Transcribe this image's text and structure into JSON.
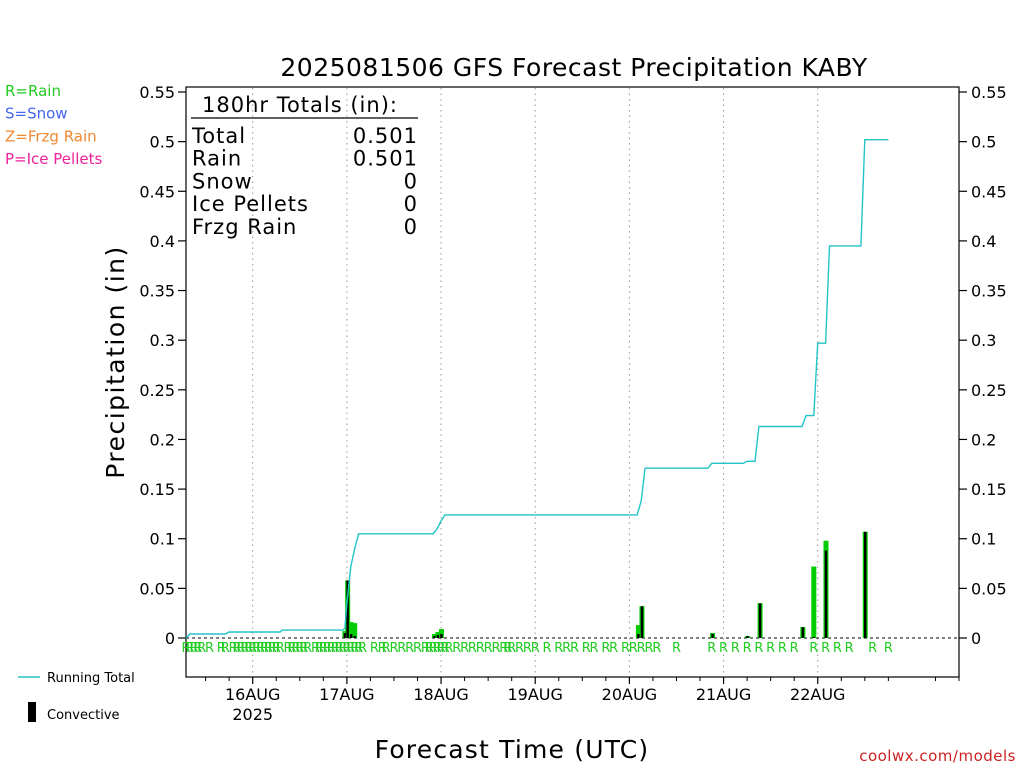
{
  "legend_top": [
    {
      "text": "R=Rain",
      "color": "#22cc22"
    },
    {
      "text": "S=Snow",
      "color": "#4466ee"
    },
    {
      "text": "Z=Frzg Rain",
      "color": "#ee8833"
    },
    {
      "text": "P=Ice Pellets",
      "color": "#ee2299"
    }
  ],
  "legend_bottom": {
    "running_total": "Running Total",
    "convective": "Convective"
  },
  "totals": {
    "header": "180hr Totals (in):",
    "rows": [
      {
        "label": "Total",
        "value": "0.501"
      },
      {
        "label": "Rain",
        "value": "0.501"
      },
      {
        "label": "Snow",
        "value": "0"
      },
      {
        "label": "Ice Pellets",
        "value": "0"
      },
      {
        "label": "Frzg Rain",
        "value": "0"
      }
    ]
  },
  "credit": "coolwx.com/models",
  "colors": {
    "running_total": "#22c4c8",
    "rain_bar": "#00cc00",
    "convective": "#000000",
    "ptype_text": "#22cc22",
    "credit": "#cc2222"
  },
  "chart_data": {
    "type": "bar",
    "title": "2025081506 GFS Forecast Precipitation KABY",
    "xlabel": "Forecast Time (UTC)",
    "ylabel": "Precipitation (in)",
    "ylim": [
      0,
      0.55
    ],
    "xlim_hours_from_16AUG00Z": [
      -17,
      180
    ],
    "y_ticks": [
      0,
      0.05,
      0.1,
      0.15,
      0.2,
      0.25,
      0.3,
      0.35,
      0.4,
      0.45,
      0.5,
      0.55
    ],
    "y_tick_labels": [
      "0",
      "0.05",
      "0.1",
      "0.15",
      "0.2",
      "0.25",
      "0.3",
      "0.35",
      "0.4",
      "0.45",
      "0.5",
      "0.55"
    ],
    "x_ticks": [
      {
        "label": "16AUG",
        "sub": "2025",
        "t": 0
      },
      {
        "label": "17AUG",
        "sub": "",
        "t": 24
      },
      {
        "label": "18AUG",
        "sub": "",
        "t": 48
      },
      {
        "label": "19AUG",
        "sub": "",
        "t": 72
      },
      {
        "label": "20AUG",
        "sub": "",
        "t": 96
      },
      {
        "label": "21AUG",
        "sub": "",
        "t": 120
      },
      {
        "label": "22AUG",
        "sub": "",
        "t": 144
      }
    ],
    "grid": "vertical dotted at day boundaries",
    "series": [
      {
        "name": "Running Total",
        "kind": "line",
        "points": [
          [
            -17,
            0.0
          ],
          [
            -16,
            0.004
          ],
          [
            -7,
            0.004
          ],
          [
            -6,
            0.006
          ],
          [
            -1,
            0.006
          ],
          [
            0,
            0.006
          ],
          [
            7,
            0.006
          ],
          [
            7.5,
            0.008
          ],
          [
            23,
            0.008
          ],
          [
            23.5,
            0.01
          ],
          [
            24,
            0.035
          ],
          [
            25,
            0.072
          ],
          [
            26,
            0.09
          ],
          [
            27,
            0.105
          ],
          [
            46,
            0.105
          ],
          [
            47,
            0.11
          ],
          [
            48,
            0.118
          ],
          [
            49,
            0.124
          ],
          [
            98,
            0.124
          ],
          [
            99,
            0.138
          ],
          [
            100,
            0.171
          ],
          [
            116,
            0.171
          ],
          [
            117,
            0.176
          ],
          [
            125,
            0.176
          ],
          [
            126,
            0.178
          ],
          [
            128,
            0.178
          ],
          [
            129,
            0.213
          ],
          [
            140,
            0.213
          ],
          [
            141,
            0.224
          ],
          [
            143,
            0.224
          ],
          [
            144,
            0.297
          ],
          [
            146,
            0.297
          ],
          [
            147,
            0.395
          ],
          [
            155,
            0.395
          ],
          [
            156,
            0.502
          ],
          [
            162,
            0.502
          ]
        ]
      },
      {
        "name": "Rain",
        "kind": "bar",
        "points": [
          [
            23.5,
            0.007
          ],
          [
            24.2,
            0.058
          ],
          [
            25.1,
            0.016
          ],
          [
            26.0,
            0.015
          ],
          [
            46.3,
            0.004
          ],
          [
            47.2,
            0.006
          ],
          [
            48.1,
            0.009
          ],
          [
            98.3,
            0.013
          ],
          [
            99.2,
            0.032
          ],
          [
            117.2,
            0.005
          ],
          [
            126.1,
            0.002
          ],
          [
            129.3,
            0.035
          ],
          [
            140.2,
            0.011
          ],
          [
            143.0,
            0.072
          ],
          [
            146.1,
            0.098
          ],
          [
            156.1,
            0.107
          ]
        ]
      },
      {
        "name": "Convective",
        "kind": "bar",
        "points": [
          [
            23.5,
            0.005
          ],
          [
            24.2,
            0.058
          ],
          [
            25.1,
            0.004
          ],
          [
            26.0,
            0.002
          ],
          [
            46.3,
            0.002
          ],
          [
            47.2,
            0.003
          ],
          [
            48.1,
            0.004
          ],
          [
            98.3,
            0.004
          ],
          [
            99.2,
            0.032
          ],
          [
            117.2,
            0.004
          ],
          [
            126.1,
            0.002
          ],
          [
            129.3,
            0.035
          ],
          [
            140.2,
            0.011
          ],
          [
            143.0,
            0.001
          ],
          [
            146.1,
            0.088
          ],
          [
            156.1,
            0.107
          ]
        ]
      }
    ],
    "precip_type_markers": {
      "symbol": "R",
      "hours": [
        -17,
        -16,
        -15,
        -14,
        -13,
        -11,
        -8,
        -7,
        -5,
        -4,
        -3,
        -2,
        -1,
        0,
        1,
        2,
        3,
        4,
        5,
        6,
        7,
        9,
        10,
        11,
        12,
        13,
        14,
        16,
        17,
        18,
        19,
        20,
        21,
        22,
        23,
        24,
        25,
        26,
        27,
        28,
        31,
        33,
        34,
        36,
        38,
        40,
        42,
        44,
        45,
        46,
        47,
        48,
        49,
        50,
        52,
        54,
        56,
        58,
        60,
        62,
        64,
        65,
        66,
        68,
        70,
        72,
        75,
        78,
        80,
        82,
        85,
        87,
        90,
        92,
        95,
        97,
        99,
        101,
        103,
        108,
        117,
        120,
        123,
        126,
        129,
        132,
        135,
        138,
        143,
        146,
        149,
        152,
        158,
        162
      ]
    }
  }
}
